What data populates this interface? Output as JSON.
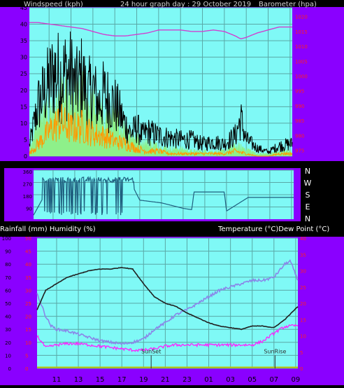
{
  "colors": {
    "background": "#000000",
    "frame": "#8a00ff",
    "plot_bg": "#7ff9f6",
    "grid": "#5aa8a6",
    "axis_text": "#000000",
    "red_ticks": "#ff2020",
    "pink_ticks": "#ff00ff",
    "wind_gust": "#000000",
    "wind_avg": "#8ef08a",
    "wind_low": "#ff9a00",
    "barometer": "#d040d0",
    "direction": "#1f5f7f",
    "temperature": "#202020",
    "dew_point": "#8a86e8",
    "humidity": "#ff20ff",
    "rain": "#c0c000",
    "marker_line": "#303030",
    "title_text": "#d0d0d0",
    "label_text": "#ffffff"
  },
  "header": {
    "left": "Windspeed (kph)",
    "center": "24 hour graph day : 29 October 2019",
    "right": "Barometer (hpa)"
  },
  "mid_header": {
    "left": "Rainfall (mm)  Humidity (%)",
    "right": "Temperature (°C)Dew Point (°C)"
  },
  "chart_data": [
    {
      "type": "line",
      "name": "wind-barometer",
      "x_ticks": [
        "11",
        "13",
        "15",
        "17",
        "19",
        "21",
        "23",
        "01",
        "03",
        "05",
        "07",
        "09"
      ],
      "x_range": [
        9.2,
        33.2
      ],
      "y_left": {
        "label": "Windspeed (kph)",
        "range": [
          0,
          45
        ],
        "ticks": [
          0,
          5,
          10,
          15,
          20,
          25,
          30,
          35,
          40,
          45
        ]
      },
      "y_right": {
        "label": "Barometer (hpa)",
        "range": [
          973,
          1023
        ],
        "ticks": [
          975,
          980,
          985,
          990,
          995,
          1000,
          1005,
          1010,
          1015,
          1020
        ]
      },
      "series": [
        {
          "name": "Barometer",
          "axis": "right",
          "x": [
            9.2,
            10,
            11,
            12,
            13,
            14,
            15,
            16,
            17,
            18,
            19,
            20,
            21,
            22,
            23,
            24,
            25,
            26,
            27,
            28,
            28.5,
            29,
            30,
            31,
            32,
            33.2
          ],
          "y": [
            1018,
            1018,
            1017.5,
            1017,
            1016.5,
            1016,
            1015,
            1014,
            1013.5,
            1013.5,
            1014,
            1014.5,
            1015.5,
            1015.5,
            1015.5,
            1015,
            1015,
            1015.5,
            1015,
            1013.5,
            1012.5,
            1013,
            1014.5,
            1015.5,
            1016.5,
            1016.5
          ]
        },
        {
          "name": "Gust envelope",
          "axis": "left",
          "x": [
            9.2,
            10,
            10.5,
            11,
            11.5,
            12,
            12.5,
            13,
            13.5,
            14,
            14.5,
            15,
            15.5,
            16,
            16.5,
            17,
            17.5,
            18,
            18.5,
            19,
            19.5,
            20,
            21,
            22,
            23,
            24,
            25,
            26,
            27,
            28,
            28.5,
            29,
            30,
            31,
            32,
            33.2
          ],
          "y": [
            5,
            25,
            30,
            35,
            41,
            38,
            40,
            39,
            33,
            38,
            29,
            33,
            25,
            30,
            27,
            25,
            20,
            15,
            11,
            14,
            10,
            12,
            10,
            9,
            8,
            8,
            6,
            7,
            6,
            10,
            18,
            8,
            4,
            2,
            5,
            6
          ]
        },
        {
          "name": "Average envelope",
          "axis": "left",
          "x": [
            9.2,
            10,
            11,
            12,
            13,
            14,
            15,
            16,
            17,
            18,
            19,
            20,
            21,
            22,
            23,
            24,
            25,
            26,
            27,
            28,
            29,
            30,
            31,
            32,
            33.2
          ],
          "y": [
            3,
            13,
            18,
            22,
            20,
            24,
            19,
            16,
            14,
            11,
            7,
            5,
            4,
            3,
            3,
            2,
            2,
            2,
            2,
            4,
            3,
            1,
            1,
            2,
            2
          ]
        },
        {
          "name": "Low envelope",
          "axis": "left",
          "x": [
            9.2,
            10,
            11,
            12,
            13,
            14,
            15,
            16,
            17,
            18,
            19,
            20,
            21,
            22,
            23,
            24,
            25,
            26,
            27,
            28,
            29,
            30,
            31,
            32,
            33.2
          ],
          "y": [
            1,
            5,
            10,
            14,
            11,
            12,
            9,
            8,
            6,
            5,
            3,
            2,
            2,
            1,
            1,
            1,
            1,
            1,
            1,
            2,
            1,
            0,
            0,
            1,
            1
          ]
        }
      ]
    },
    {
      "type": "line",
      "name": "wind-direction",
      "x_ticks": [
        "11",
        "13",
        "15",
        "17",
        "19",
        "21",
        "23",
        "01",
        "03",
        "05",
        "07",
        "09"
      ],
      "x_range": [
        9.2,
        33.2
      ],
      "y_left": {
        "range": [
          0,
          360
        ],
        "ticks": [
          90,
          180,
          270,
          360
        ]
      },
      "y_right": {
        "labels": [
          "N",
          "W",
          "S",
          "E",
          "N"
        ]
      },
      "series": [
        {
          "name": "Direction",
          "x": [
            9.2,
            11,
            13,
            15,
            17,
            18.3,
            19,
            20,
            21,
            22,
            23,
            23.8,
            24,
            25,
            26,
            26.8,
            27,
            29,
            31,
            33.2
          ],
          "y": [
            30,
            290,
            240,
            280,
            270,
            250,
            140,
            130,
            120,
            100,
            80,
            70,
            200,
            200,
            200,
            200,
            60,
            160,
            160,
            160
          ]
        }
      ]
    },
    {
      "type": "line",
      "name": "temperature-humidity",
      "x_ticks": [
        "11",
        "13",
        "15",
        "17",
        "19",
        "21",
        "23",
        "01",
        "03",
        "05",
        "07",
        "09"
      ],
      "x_range": [
        9.2,
        33.2
      ],
      "y_left": {
        "label": "Rainfall (mm)  Humidity (%)",
        "range": [
          0,
          100
        ],
        "ticks": [
          0,
          10,
          20,
          30,
          40,
          50,
          60,
          70,
          80,
          90,
          100
        ]
      },
      "y_left2": {
        "range": [
          0,
          50
        ],
        "ticks": [
          0,
          5,
          10,
          15,
          20,
          25,
          30,
          35,
          40,
          45,
          50
        ]
      },
      "y_right": {
        "label": "Temperature (°C)Dew Point (°C)",
        "range": [
          0,
          40
        ],
        "ticks": [
          0,
          5,
          10,
          15,
          20,
          25,
          30,
          35,
          40
        ]
      },
      "series": [
        {
          "name": "Temperature",
          "axis": "right",
          "x": [
            9.2,
            10,
            11,
            12,
            13,
            14,
            15,
            16,
            17,
            18,
            19,
            20,
            21,
            22,
            23,
            24,
            25,
            26,
            27,
            28,
            29,
            30,
            31,
            32,
            33.2
          ],
          "y": [
            18,
            24,
            26,
            28,
            29,
            30,
            30.5,
            30.5,
            31,
            30.5,
            26,
            22,
            20,
            19,
            17,
            15.5,
            14,
            13,
            12.5,
            12,
            13,
            13,
            12.5,
            15,
            19
          ]
        },
        {
          "name": "Dew Point",
          "axis": "right",
          "x": [
            9.2,
            10,
            10.5,
            11,
            12,
            13,
            14,
            15,
            16,
            17,
            18,
            19,
            20,
            21,
            22,
            23,
            24,
            25,
            26,
            27,
            28,
            29,
            30,
            31,
            32,
            32.5,
            33.2
          ],
          "y": [
            23,
            16,
            13,
            12,
            11.5,
            10.5,
            9.5,
            8.5,
            8,
            7.5,
            8,
            9,
            12,
            14,
            16.5,
            18,
            20,
            22,
            24,
            25,
            26,
            27,
            27,
            28,
            32,
            33,
            27
          ]
        },
        {
          "name": "Humidity",
          "axis": "left",
          "x": [
            9.2,
            10,
            11,
            12,
            13,
            14,
            15,
            16,
            17,
            18,
            19,
            20,
            21,
            22,
            23,
            24,
            25,
            26,
            27,
            28,
            29,
            30,
            31,
            32,
            33.2
          ],
          "y": [
            25,
            16,
            18,
            19,
            19,
            18,
            17,
            16,
            15,
            14,
            14,
            15,
            17,
            18,
            18,
            18,
            18,
            18,
            18,
            18,
            18,
            21,
            27,
            32,
            33
          ]
        },
        {
          "name": "Rain",
          "axis": "left",
          "x": [
            9.2,
            33.2
          ],
          "y": [
            0.8,
            0.8
          ]
        }
      ],
      "annotations": [
        {
          "label": "SunSet",
          "x": 19.7
        },
        {
          "label": "SunRise",
          "x": 31.1
        }
      ]
    }
  ]
}
